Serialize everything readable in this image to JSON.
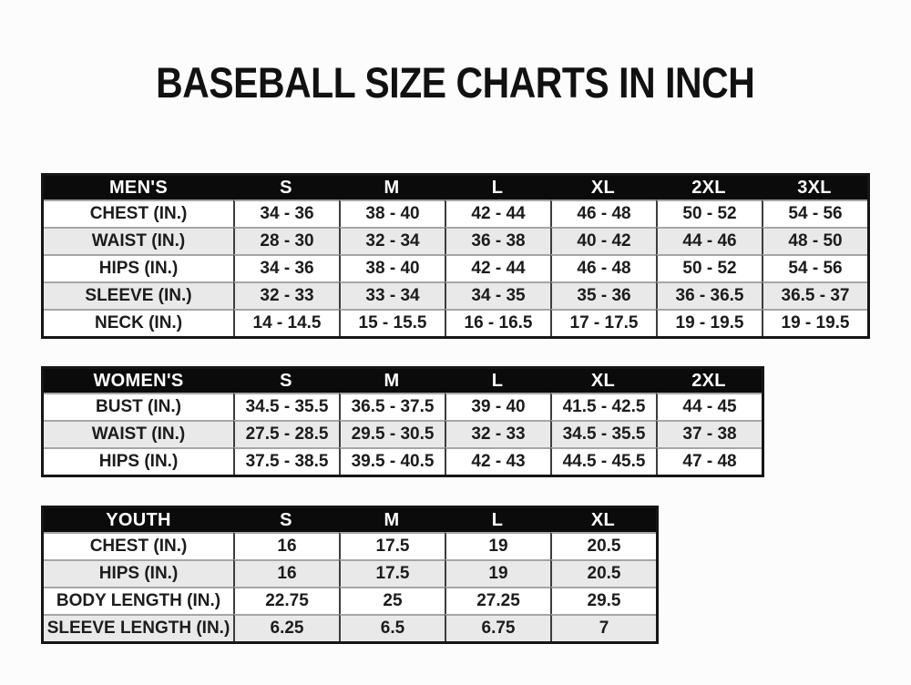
{
  "page": {
    "title": "BASEBALL SIZE CHARTS IN INCH"
  },
  "colors": {
    "page_bg": "#fcfcfc",
    "header_bg": "#0b0b0b",
    "header_text": "#ffffff",
    "row_bg": "#ffffff",
    "row_alt_bg": "#e9e9e9",
    "border_dark": "#161616",
    "border_mid": "#3d3d3d",
    "border_light": "#a6a6a6",
    "text": "#1c1c1c"
  },
  "tables": [
    {
      "id": "mens",
      "header": [
        "MEN'S",
        "S",
        "M",
        "L",
        "XL",
        "2XL",
        "3XL"
      ],
      "rows": [
        [
          "CHEST (IN.)",
          "34 - 36",
          "38 - 40",
          "42 - 44",
          "46 - 48",
          "50 - 52",
          "54 - 56"
        ],
        [
          "WAIST (IN.)",
          "28 - 30",
          "32 - 34",
          "36 - 38",
          "40 - 42",
          "44 - 46",
          "48 - 50"
        ],
        [
          "HIPS (IN.)",
          "34 - 36",
          "38 - 40",
          "42 - 44",
          "46 - 48",
          "50 - 52",
          "54 - 56"
        ],
        [
          "SLEEVE (IN.)",
          "32 - 33",
          "33 - 34",
          "34 - 35",
          "35 - 36",
          "36 - 36.5",
          "36.5 - 37"
        ],
        [
          "NECK (IN.)",
          "14 - 14.5",
          "15 - 15.5",
          "16 - 16.5",
          "17 - 17.5",
          "19 - 19.5",
          "19 - 19.5"
        ]
      ]
    },
    {
      "id": "womens",
      "header": [
        "WOMEN'S",
        "S",
        "M",
        "L",
        "XL",
        "2XL"
      ],
      "rows": [
        [
          "BUST (IN.)",
          "34.5 - 35.5",
          "36.5 - 37.5",
          "39 - 40",
          "41.5 - 42.5",
          "44 - 45"
        ],
        [
          "WAIST (IN.)",
          "27.5 - 28.5",
          "29.5 - 30.5",
          "32 - 33",
          "34.5 - 35.5",
          "37 - 38"
        ],
        [
          "HIPS (IN.)",
          "37.5 - 38.5",
          "39.5 - 40.5",
          "42 - 43",
          "44.5 - 45.5",
          "47 - 48"
        ]
      ]
    },
    {
      "id": "youth",
      "header": [
        "YOUTH",
        "S",
        "M",
        "L",
        "XL"
      ],
      "rows": [
        [
          "CHEST (IN.)",
          "16",
          "17.5",
          "19",
          "20.5"
        ],
        [
          "HIPS (IN.)",
          "16",
          "17.5",
          "19",
          "20.5"
        ],
        [
          "BODY LENGTH (IN.)",
          "22.75",
          "25",
          "27.25",
          "29.5"
        ],
        [
          "SLEEVE LENGTH (IN.)",
          "6.25",
          "6.5",
          "6.75",
          "7"
        ]
      ]
    }
  ]
}
